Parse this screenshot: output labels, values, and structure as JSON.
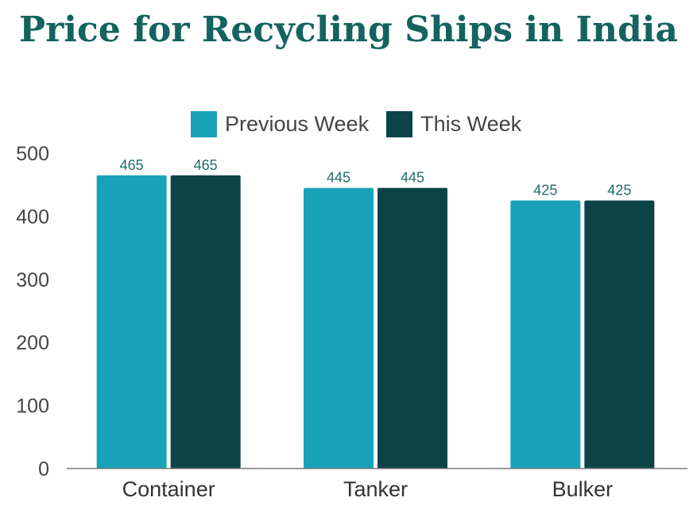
{
  "colors": {
    "title": "#13635f",
    "previous_week": "#17a2b8",
    "this_week": "#0b4347",
    "axis_line": "#7a7a7a",
    "data_label": "#1f6e6b"
  },
  "chart_data": {
    "type": "bar",
    "title": "Price for Recycling Ships in India",
    "xlabel": "",
    "ylabel": "",
    "categories": [
      "Container",
      "Tanker",
      "Bulker"
    ],
    "series": [
      {
        "name": "Previous Week",
        "values": [
          465,
          445,
          425
        ]
      },
      {
        "name": "This Week",
        "values": [
          465,
          445,
          425
        ]
      }
    ],
    "ylim": [
      0,
      500
    ],
    "yticks": [
      "0",
      "100",
      "200",
      "300",
      "400",
      "500"
    ],
    "grid": false,
    "legend_position": "top"
  }
}
